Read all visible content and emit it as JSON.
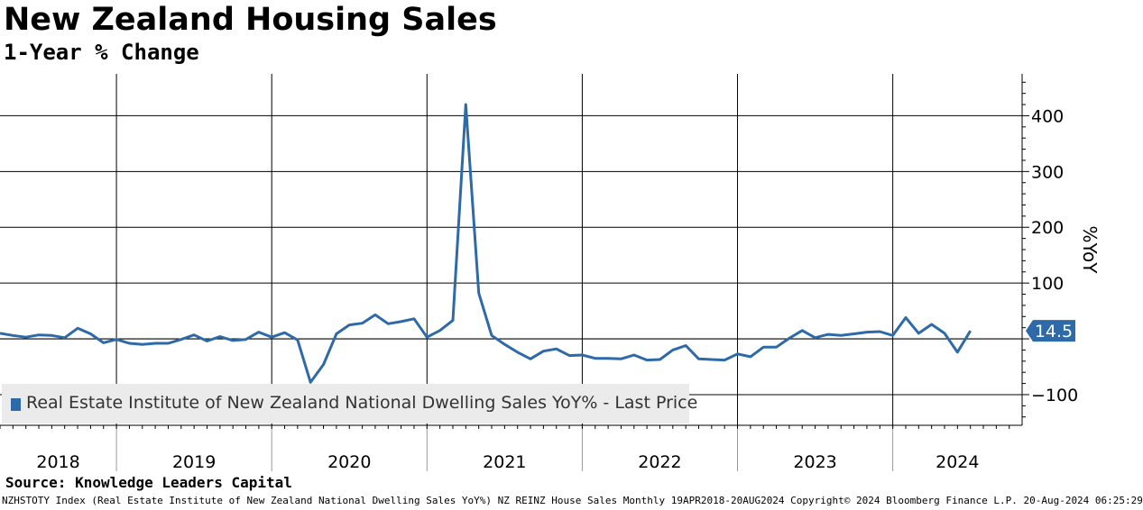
{
  "header": {
    "title": "New Zealand Housing Sales",
    "subtitle": "1-Year % Change"
  },
  "source": "Source: Knowledge Leaders Capital",
  "footer": "NZHSTOTY Index (Real Estate Institute of New Zealand National Dwelling Sales YoY%) NZ REINZ House Sales  Monthly 19APR2018-20AUG2024 Copyright© 2024 Bloomberg Finance L.P. 20-Aug-2024 06:25:29",
  "legend": {
    "label": "Real Estate Institute of New Zealand National Dwelling Sales YoY% - Last Price"
  },
  "colors": {
    "series": "#2e6aa7",
    "grid": "#000000",
    "legend_bg": "#ebebeb"
  },
  "chart_data": {
    "type": "line",
    "title": "New Zealand Housing Sales",
    "subtitle": "1-Year % Change",
    "ylabel": "%YoY",
    "ylim": [
      -155,
      475
    ],
    "yticks": [
      400,
      300,
      200,
      100,
      -100
    ],
    "zero_line": 0,
    "x_start": 2018.25,
    "x_step": 0.0833333,
    "xlim": [
      2018.25,
      2024.833
    ],
    "year_labels": [
      "2018",
      "2019",
      "2020",
      "2021",
      "2022",
      "2023",
      "2024"
    ],
    "year_boundaries": [
      2019,
      2020,
      2021,
      2022,
      2023,
      2024
    ],
    "last_value_label": "14.5",
    "series": [
      {
        "name": "Real Estate Institute of New Zealand National Dwelling Sales YoY% - Last Price",
        "values": [
          10,
          6,
          3,
          7,
          6,
          2,
          19,
          9,
          -7,
          -1,
          -8,
          -10,
          -8,
          -8,
          -1,
          7,
          -4,
          4,
          -3,
          -1,
          12,
          3,
          11,
          -2,
          -78,
          -46,
          9,
          25,
          28,
          43,
          27,
          31,
          36,
          3,
          15,
          33,
          420,
          82,
          6,
          -10,
          -24,
          -36,
          -22,
          -18,
          -30,
          -29,
          -35,
          -35,
          -36,
          -29,
          -38,
          -37,
          -20,
          -12,
          -36,
          -37,
          -38,
          -27,
          -32,
          -15,
          -15,
          1,
          15,
          2,
          8,
          6,
          9,
          12,
          13,
          6,
          38,
          10,
          26,
          10,
          -24,
          14.5
        ]
      }
    ]
  }
}
